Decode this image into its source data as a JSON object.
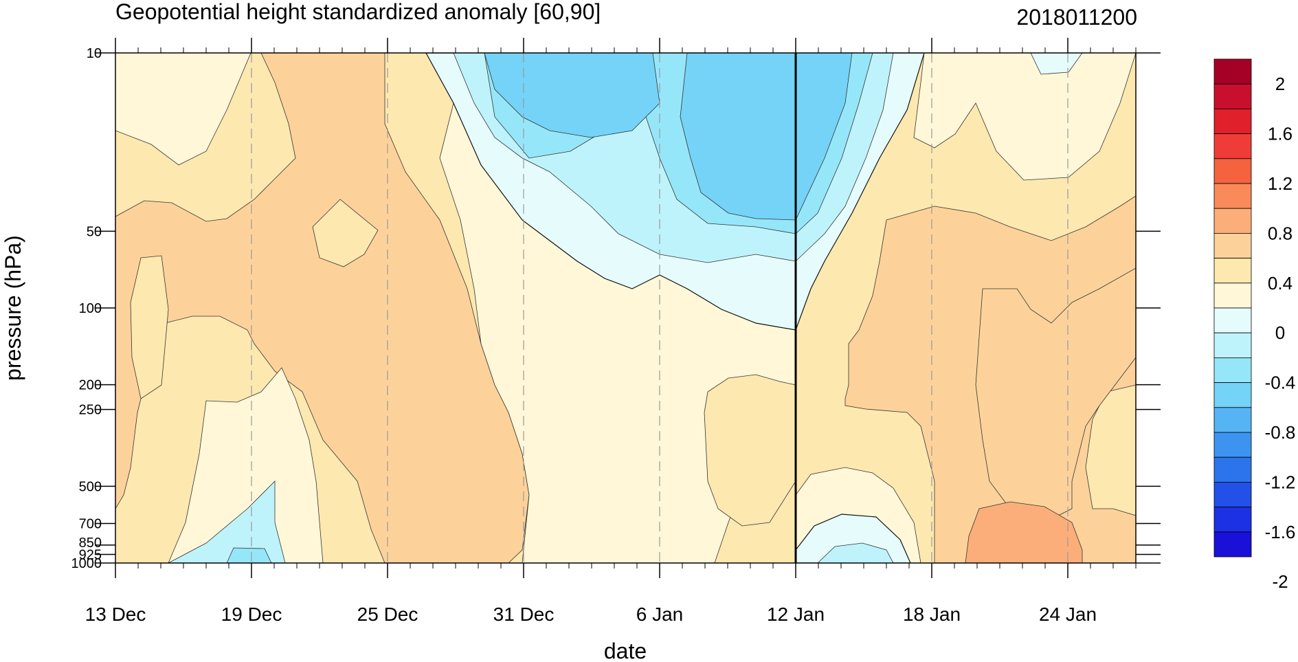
{
  "chart_data": {
    "type": "heatmap",
    "title": "Geopotential height standardized anomaly [60,90]",
    "init_time": "2018011200",
    "xlabel": "date",
    "ylabel": "pressure (hPa)",
    "x_ticks": [
      "13 Dec",
      "19 Dec",
      "25 Dec",
      "31 Dec",
      "6 Jan",
      "12 Jan",
      "18 Jan",
      "24 Jan"
    ],
    "y_scale": "log",
    "y_ticks": [
      10,
      50,
      100,
      200,
      250,
      500,
      700,
      850,
      925,
      1000
    ],
    "y_tick_labels": [
      "10",
      "50",
      "100",
      "200",
      "250",
      "500",
      "700",
      "850",
      "925",
      "1000"
    ],
    "colorbar": {
      "labels": [
        "2",
        "1.6",
        "1.2",
        "0.8",
        "0.4",
        "0",
        "-0.4",
        "-0.8",
        "-1.2",
        "-1.6",
        "-2"
      ],
      "colors": [
        "#a50026",
        "#c8102e",
        "#e0202a",
        "#f03c38",
        "#f4623e",
        "#fa8a5a",
        "#fcae7a",
        "#fdd29a",
        "#fde8b0",
        "#fff7d8",
        "#e6fcfc",
        "#bff3fc",
        "#96e6fa",
        "#74d3f6",
        "#56b4f4",
        "#3c94f0",
        "#2c74ec",
        "#2250e8",
        "#1c30e4",
        "#1a10d8"
      ]
    },
    "time_marker": "12 Jan",
    "grid_dashed_at": [
      "19 Dec",
      "25 Dec",
      "31 Dec",
      "6 Jan",
      "18 Jan",
      "24 Jan"
    ],
    "x_day_range": [
      0,
      45
    ],
    "contour_fields_approx": [
      {
        "level": 0.4,
        "region": "13 Dec–25 Dec, 50–200 hPa",
        "value": 0.5
      },
      {
        "level": 0.4,
        "region": "22–30 Dec, 10–700 hPa",
        "value": 0.5
      },
      {
        "level": -0.8,
        "region": "2 Jan–12 Jan, 10–50 hPa",
        "value": -0.9
      },
      {
        "level": -0.4,
        "region": "29 Dec–15 Jan, 10–130 hPa",
        "value": -0.5
      },
      {
        "level": 0.8,
        "region": "20–26 Jan, 800–1000 hPa",
        "value": 0.9
      },
      {
        "level": -0.4,
        "region": "18–20 Dec, 800–1000 hPa",
        "value": -0.5
      }
    ]
  }
}
